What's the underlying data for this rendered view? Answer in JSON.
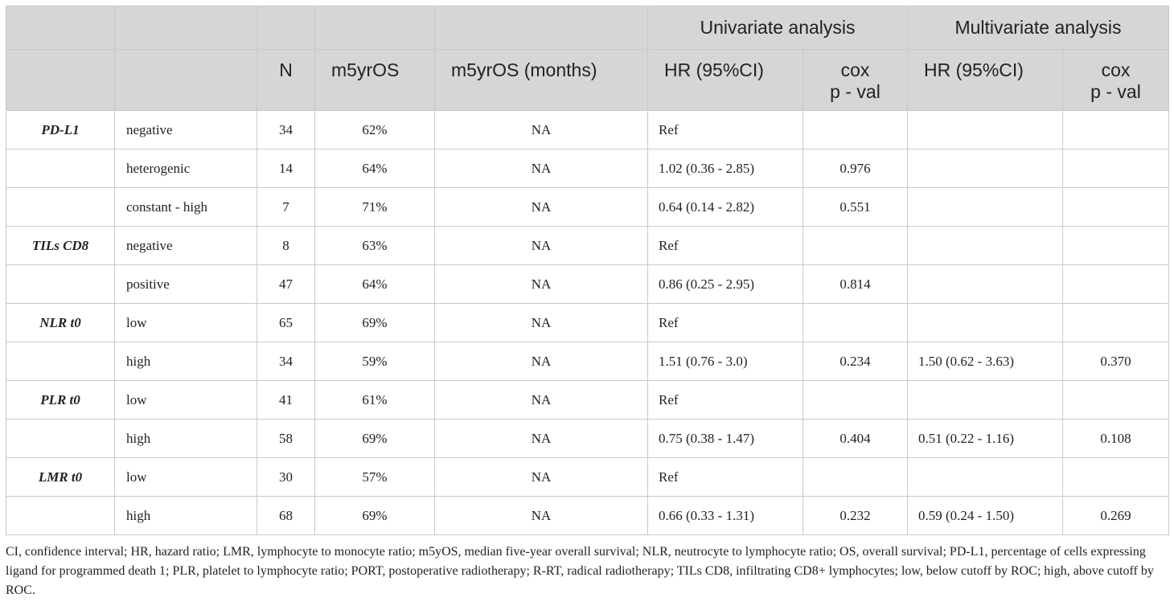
{
  "header": {
    "group_univariate": "Univariate analysis",
    "group_multivariate": "Multivariate analysis",
    "col_n": "N",
    "col_m5yros": "m5yrOS",
    "col_m5yros_months": "m5yrOS (months)",
    "col_uni_hr": "HR (95%CI)",
    "col_uni_cox_line1": "cox",
    "col_uni_cox_line2": "p - val",
    "col_multi_hr": "HR (95%CI)",
    "col_multi_cox_line1": "cox",
    "col_multi_cox_line2": "p - val"
  },
  "rows": [
    {
      "label": "PD-L1",
      "category": "negative",
      "n": "34",
      "m5yros": "62%",
      "months": "NA",
      "uni_hr": "Ref",
      "uni_p": "",
      "multi_hr": "",
      "multi_p": ""
    },
    {
      "label": "",
      "category": "heterogenic",
      "n": "14",
      "m5yros": "64%",
      "months": "NA",
      "uni_hr": "1.02 (0.36 - 2.85)",
      "uni_p": "0.976",
      "multi_hr": "",
      "multi_p": ""
    },
    {
      "label": "",
      "category": "constant - high",
      "n": "7",
      "m5yros": "71%",
      "months": "NA",
      "uni_hr": "0.64 (0.14 - 2.82)",
      "uni_p": "0.551",
      "multi_hr": "",
      "multi_p": ""
    },
    {
      "label": "TILs CD8",
      "category": "negative",
      "n": "8",
      "m5yros": "63%",
      "months": "NA",
      "uni_hr": "Ref",
      "uni_p": "",
      "multi_hr": "",
      "multi_p": ""
    },
    {
      "label": "",
      "category": "positive",
      "n": "47",
      "m5yros": "64%",
      "months": "NA",
      "uni_hr": "0.86 (0.25 - 2.95)",
      "uni_p": "0.814",
      "multi_hr": "",
      "multi_p": ""
    },
    {
      "label": "NLR t0",
      "category": "low",
      "n": "65",
      "m5yros": "69%",
      "months": "NA",
      "uni_hr": "Ref",
      "uni_p": "",
      "multi_hr": "",
      "multi_p": ""
    },
    {
      "label": "",
      "category": "high",
      "n": "34",
      "m5yros": "59%",
      "months": "NA",
      "uni_hr": "1.51 (0.76 - 3.0)",
      "uni_p": "0.234",
      "multi_hr": "1.50 (0.62 - 3.63)",
      "multi_p": "0.370"
    },
    {
      "label": "PLR t0",
      "category": "low",
      "n": "41",
      "m5yros": "61%",
      "months": "NA",
      "uni_hr": "Ref",
      "uni_p": "",
      "multi_hr": "",
      "multi_p": ""
    },
    {
      "label": "",
      "category": "high",
      "n": "58",
      "m5yros": "69%",
      "months": "NA",
      "uni_hr": "0.75 (0.38 - 1.47)",
      "uni_p": "0.404",
      "multi_hr": "0.51 (0.22 - 1.16)",
      "multi_p": "0.108"
    },
    {
      "label": "LMR t0",
      "category": "low",
      "n": "30",
      "m5yros": "57%",
      "months": "NA",
      "uni_hr": "Ref",
      "uni_p": "",
      "multi_hr": "",
      "multi_p": ""
    },
    {
      "label": "",
      "category": "high",
      "n": "68",
      "m5yros": "69%",
      "months": "NA",
      "uni_hr": "0.66 (0.33 - 1.31)",
      "uni_p": "0.232",
      "multi_hr": "0.59 (0.24 - 1.50)",
      "multi_p": "0.269"
    }
  ],
  "footnote": "CI, confidence interval; HR, hazard ratio; LMR, lymphocyte to monocyte ratio; m5yOS, median five-year overall survival; NLR, neutrocyte to lymphocyte ratio; OS, overall survival; PD-L1, percentage of cells expressing ligand for programmed death 1; PLR, platelet to lymphocyte ratio; PORT, postoperative radiotherapy; R-RT, radical radiotherapy; TILs CD8, infiltrating CD8+ lymphocytes; low, below cutoff by ROC; high, above cutoff by ROC."
}
